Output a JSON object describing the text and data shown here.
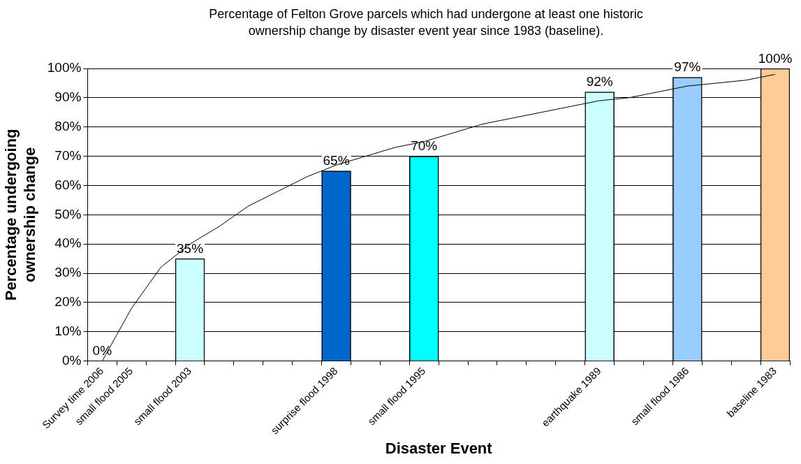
{
  "chart_data": {
    "type": "bar",
    "title": "Percentage of Felton Grove parcels which had undergone at least one historic ownership change by disaster event year since 1983 (baseline).",
    "xlabel": "Disaster Event",
    "ylabel": "Percentage undergoing ownership change",
    "categories": [
      "Survey time 2006",
      "small flood 2005",
      null,
      "small flood 2003",
      null,
      null,
      null,
      null,
      "surprise flood 1998",
      null,
      null,
      "small flood 1995",
      null,
      null,
      null,
      null,
      null,
      "earthquake 1989",
      null,
      null,
      "small flood 1986",
      null,
      null,
      "baseline 1983"
    ],
    "series": [
      {
        "values": [
          0,
          null,
          null,
          35,
          null,
          null,
          null,
          null,
          65,
          null,
          null,
          70,
          null,
          null,
          null,
          null,
          null,
          92,
          null,
          null,
          97,
          null,
          null,
          100
        ],
        "colors": [
          "#ccffff",
          null,
          null,
          "#ccffff",
          null,
          null,
          null,
          null,
          "#0066cc",
          null,
          null,
          "#00ffff",
          null,
          null,
          null,
          null,
          null,
          "#ccffff",
          null,
          null,
          "#99ccff",
          null,
          null,
          "#ffcc99"
        ],
        "value_labels": [
          "0%",
          null,
          null,
          "35%",
          null,
          null,
          null,
          null,
          "65%",
          null,
          null,
          "70%",
          null,
          null,
          null,
          null,
          null,
          "92%",
          null,
          null,
          "97%",
          null,
          null,
          "100%"
        ]
      },
      {
        "type": "line",
        "color": "#000000",
        "values": [
          0,
          18,
          32,
          40,
          46,
          53,
          58,
          63,
          67,
          70,
          73,
          75,
          78,
          81,
          83,
          85,
          87,
          89,
          90,
          92,
          94,
          95,
          96,
          98
        ]
      }
    ],
    "ylim": [
      0,
      100
    ],
    "yticks": [
      {
        "value": 0,
        "label": "0%"
      },
      {
        "value": 10,
        "label": "10%"
      },
      {
        "value": 20,
        "label": "20%"
      },
      {
        "value": 30,
        "label": "30%"
      },
      {
        "value": 40,
        "label": "40%"
      },
      {
        "value": 50,
        "label": "50%"
      },
      {
        "value": 60,
        "label": "60%"
      },
      {
        "value": 70,
        "label": "70%"
      },
      {
        "value": 80,
        "label": "80%"
      },
      {
        "value": 90,
        "label": "90%"
      },
      {
        "value": 100,
        "label": "100%"
      }
    ],
    "grid": "y",
    "legend": false,
    "marker": "none"
  }
}
